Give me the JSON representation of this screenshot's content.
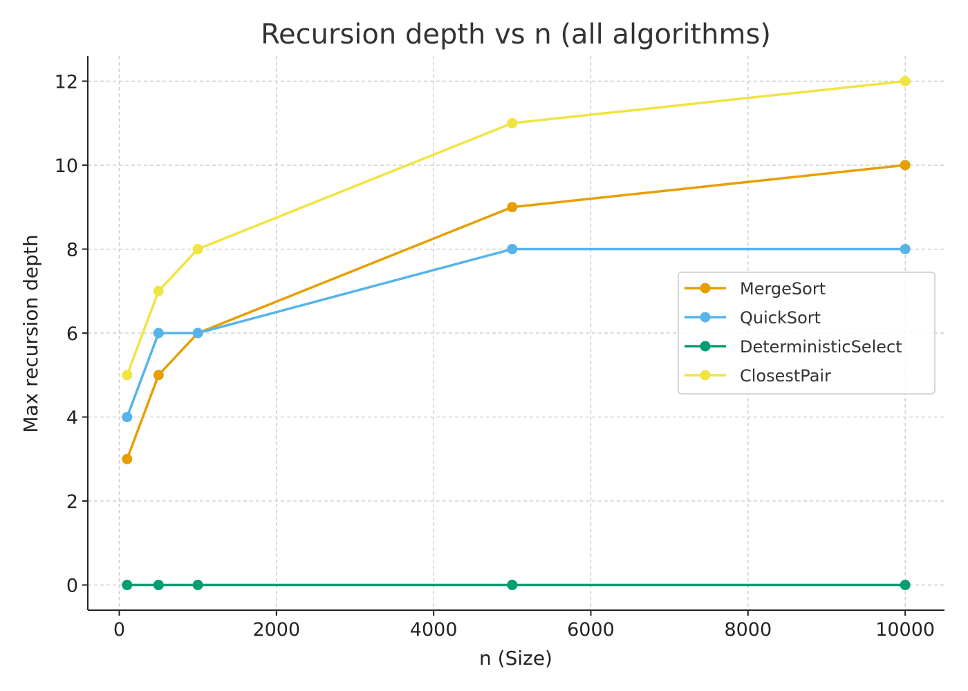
{
  "chart_data": {
    "type": "line",
    "title": "Recursion depth vs n (all algorithms)",
    "xlabel": "n (Size)",
    "ylabel": "Max recursion depth",
    "x": [
      100,
      500,
      1000,
      5000,
      10000
    ],
    "xlim": [
      -400,
      10500
    ],
    "ylim": [
      -0.6,
      12.6
    ],
    "xticks": [
      0,
      2000,
      4000,
      6000,
      8000,
      10000
    ],
    "yticks": [
      0,
      2,
      4,
      6,
      8,
      10,
      12
    ],
    "xtick_labels": [
      "0",
      "2000",
      "4000",
      "6000",
      "8000",
      "10000"
    ],
    "ytick_labels": [
      "0",
      "2",
      "4",
      "6",
      "8",
      "10",
      "12"
    ],
    "grid": true,
    "legend_position": "center-right",
    "series": [
      {
        "name": "MergeSort",
        "color": "#E69F00",
        "values": [
          3,
          5,
          6,
          9,
          10
        ]
      },
      {
        "name": "QuickSort",
        "color": "#56B4E9",
        "values": [
          4,
          6,
          6,
          8,
          8
        ]
      },
      {
        "name": "DeterministicSelect",
        "color": "#009E73",
        "values": [
          0,
          0,
          0,
          0,
          0
        ]
      },
      {
        "name": "ClosestPair",
        "color": "#F0E442",
        "values": [
          5,
          7,
          8,
          11,
          12
        ]
      }
    ]
  }
}
